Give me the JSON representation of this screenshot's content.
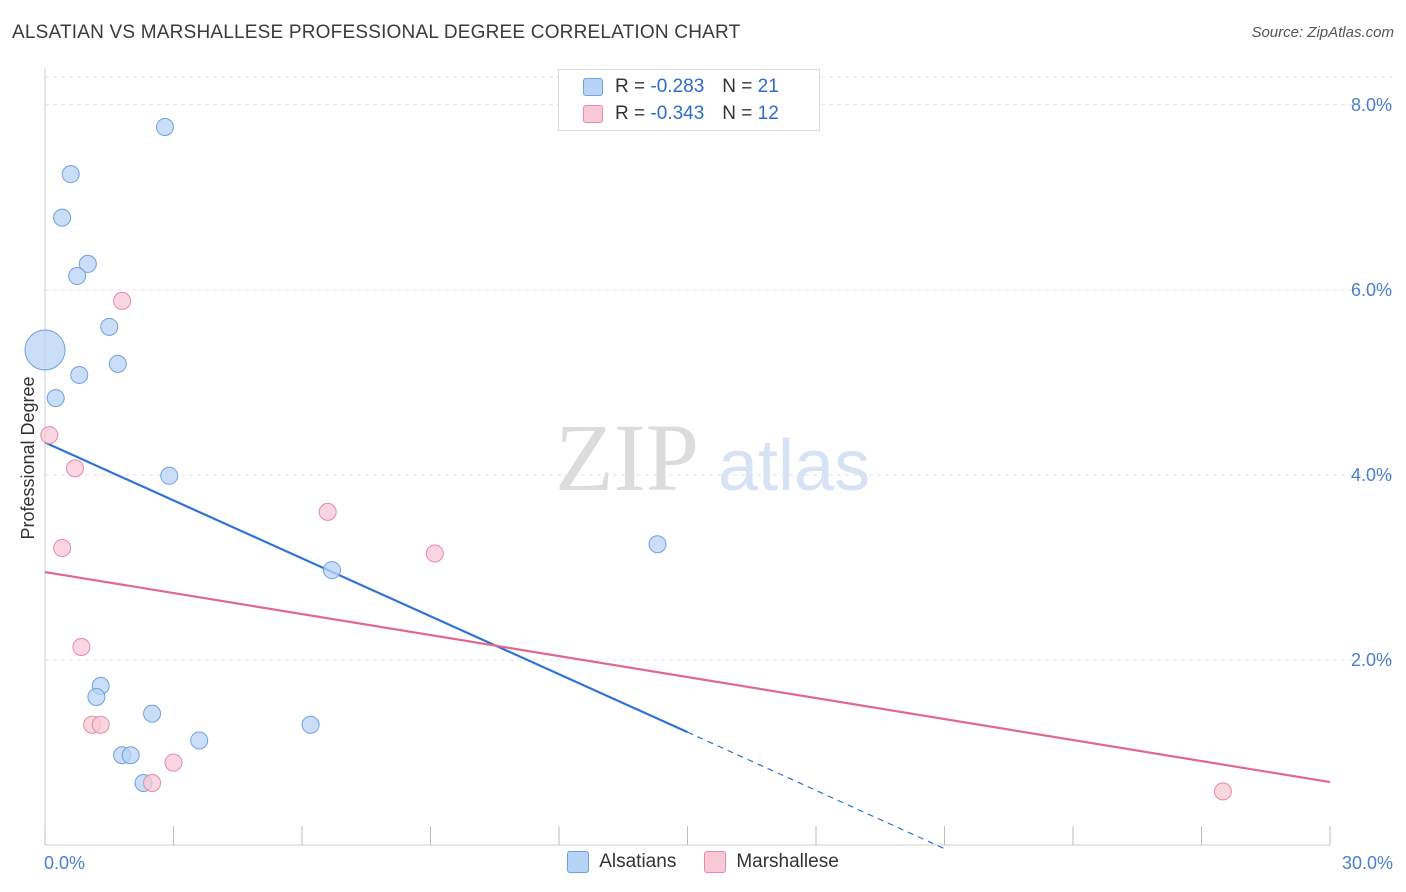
{
  "header": {
    "title": "ALSATIAN VS MARSHALLESE PROFESSIONAL DEGREE CORRELATION CHART",
    "source": "Source: ZipAtlas.com"
  },
  "legend": {
    "series": [
      {
        "r_label": "R = ",
        "r_value": "-0.283",
        "n_label": "N = ",
        "n_value": "21"
      },
      {
        "r_label": "R = ",
        "r_value": "-0.343",
        "n_label": "N = ",
        "n_value": "12"
      }
    ]
  },
  "watermark": {
    "zip": "ZIP",
    "atlas": "atlas"
  },
  "colors": {
    "alsatian_fill": "#b8d3f5",
    "alsatian_stroke": "#6fa0e0",
    "alsatian_line": "#2f72d6",
    "marshallese_fill": "#f8c8d6",
    "marshallese_stroke": "#e68aa6",
    "marshallese_line": "#e06890",
    "tick_text": "#4a7fd0",
    "grid": "#e2e2e2"
  },
  "chart_data": {
    "type": "scatter",
    "title": "ALSATIAN VS MARSHALLESE PROFESSIONAL DEGREE CORRELATION CHART",
    "xlabel": "",
    "ylabel": "Professional Degree",
    "xlim": [
      0,
      30
    ],
    "ylim": [
      0,
      8.3
    ],
    "x_ticks": [
      0,
      3,
      6,
      9,
      12,
      15,
      18,
      21,
      24,
      27,
      30
    ],
    "x_tick_labels": {
      "left": "0.0%",
      "right": "30.0%"
    },
    "y_ticks": [
      2,
      4,
      6,
      8
    ],
    "y_tick_labels": [
      "2.0%",
      "4.0%",
      "6.0%",
      "8.0%"
    ],
    "legend_position": "top-center",
    "series": [
      {
        "name": "Alsatians",
        "r": -0.283,
        "n": 21,
        "points": [
          {
            "x": 0.0,
            "y": 5.35,
            "size": "large"
          },
          {
            "x": 0.6,
            "y": 7.25
          },
          {
            "x": 0.4,
            "y": 6.78
          },
          {
            "x": 1.0,
            "y": 6.28
          },
          {
            "x": 0.75,
            "y": 6.15
          },
          {
            "x": 1.5,
            "y": 5.6
          },
          {
            "x": 1.7,
            "y": 5.2
          },
          {
            "x": 0.8,
            "y": 5.08
          },
          {
            "x": 0.25,
            "y": 4.83
          },
          {
            "x": 2.8,
            "y": 7.76
          },
          {
            "x": 2.9,
            "y": 3.99
          },
          {
            "x": 14.3,
            "y": 3.25
          },
          {
            "x": 6.7,
            "y": 2.97
          },
          {
            "x": 1.3,
            "y": 1.72
          },
          {
            "x": 1.2,
            "y": 1.6
          },
          {
            "x": 2.5,
            "y": 1.42
          },
          {
            "x": 6.2,
            "y": 1.3
          },
          {
            "x": 3.6,
            "y": 1.13
          },
          {
            "x": 1.8,
            "y": 0.97
          },
          {
            "x": 2.0,
            "y": 0.97
          },
          {
            "x": 2.3,
            "y": 0.67
          }
        ],
        "trend": {
          "x0": 0,
          "y0": 4.35,
          "x1": 15,
          "y1": 1.22,
          "dash_to_x": 21,
          "dash_to_y": -0.04
        }
      },
      {
        "name": "Marshallese",
        "r": -0.343,
        "n": 12,
        "points": [
          {
            "x": 1.8,
            "y": 5.88
          },
          {
            "x": 0.1,
            "y": 4.43
          },
          {
            "x": 0.7,
            "y": 4.07
          },
          {
            "x": 6.6,
            "y": 3.6
          },
          {
            "x": 0.4,
            "y": 3.21
          },
          {
            "x": 9.1,
            "y": 3.15
          },
          {
            "x": 0.85,
            "y": 2.14
          },
          {
            "x": 1.1,
            "y": 1.3
          },
          {
            "x": 1.3,
            "y": 1.3
          },
          {
            "x": 3.0,
            "y": 0.89
          },
          {
            "x": 2.5,
            "y": 0.67
          },
          {
            "x": 27.5,
            "y": 0.58
          }
        ],
        "trend": {
          "x0": 0,
          "y0": 2.95,
          "x1": 30,
          "y1": 0.68
        }
      }
    ]
  }
}
